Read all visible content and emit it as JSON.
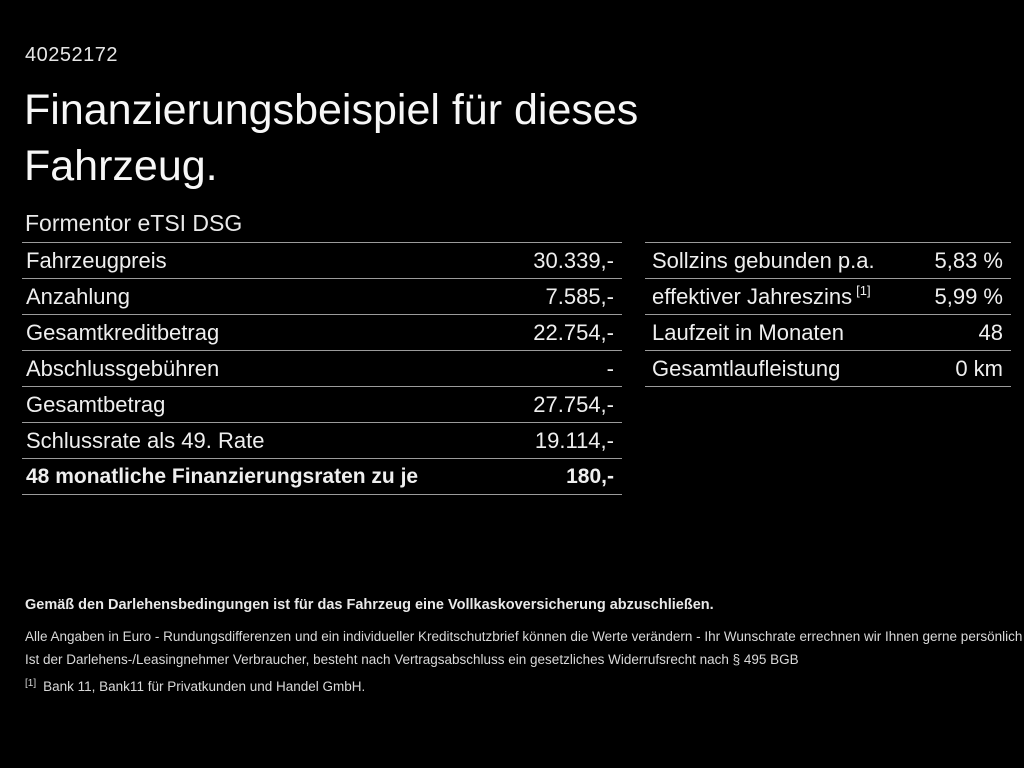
{
  "page": {
    "id_number": "40252172",
    "title_line1": "Finanzierungsbeispiel für dieses",
    "title_line2": "Fahrzeug.",
    "model": "Formentor eTSI DSG"
  },
  "left_table": {
    "rows": [
      {
        "label": "Fahrzeugpreis",
        "value": "30.339,-"
      },
      {
        "label": "Anzahlung",
        "value": "7.585,-"
      },
      {
        "label": "Gesamtkreditbetrag",
        "value": "22.754,-"
      },
      {
        "label": "Abschlussgebühren",
        "value": "-"
      },
      {
        "label": "Gesamtbetrag",
        "value": "27.754,-"
      },
      {
        "label": "Schlussrate als 49. Rate",
        "value": "19.114,-"
      },
      {
        "label": "48 monatliche Finanzierungsraten zu je",
        "value": "180,-"
      }
    ]
  },
  "right_table": {
    "rows": [
      {
        "label": "Sollzins gebunden p.a.",
        "value": "5,83 %"
      },
      {
        "label": "effektiver Jahreszins",
        "superscript": "[1]",
        "value": "5,99 %"
      },
      {
        "label": "Laufzeit in Monaten",
        "value": "48"
      },
      {
        "label": "Gesamtlaufleistung",
        "value": "0 km"
      }
    ]
  },
  "footer": {
    "bold_note": "Gemäß den Darlehensbedingungen ist für das Fahrzeug eine Vollkaskoversicherung abzuschließen.",
    "note1": "Alle Angaben in Euro - Rundungsdifferenzen und ein individueller Kreditschutzbrief können die Werte verändern - Ihr Wunschrate errechnen wir Ihnen gerne persönlich",
    "note2": "Ist der Darlehens-/Leasingnehmer Verbraucher, besteht nach Vertragsabschluss ein gesetzliches Widerrufsrecht nach § 495 BGB",
    "footnote_marker": "[1]",
    "footnote_text": "Bank 11, Bank11 für Privatkunden und Handel GmbH."
  },
  "colors": {
    "background": "#000000",
    "text": "#efefef",
    "divider": "#9b9b9b"
  }
}
